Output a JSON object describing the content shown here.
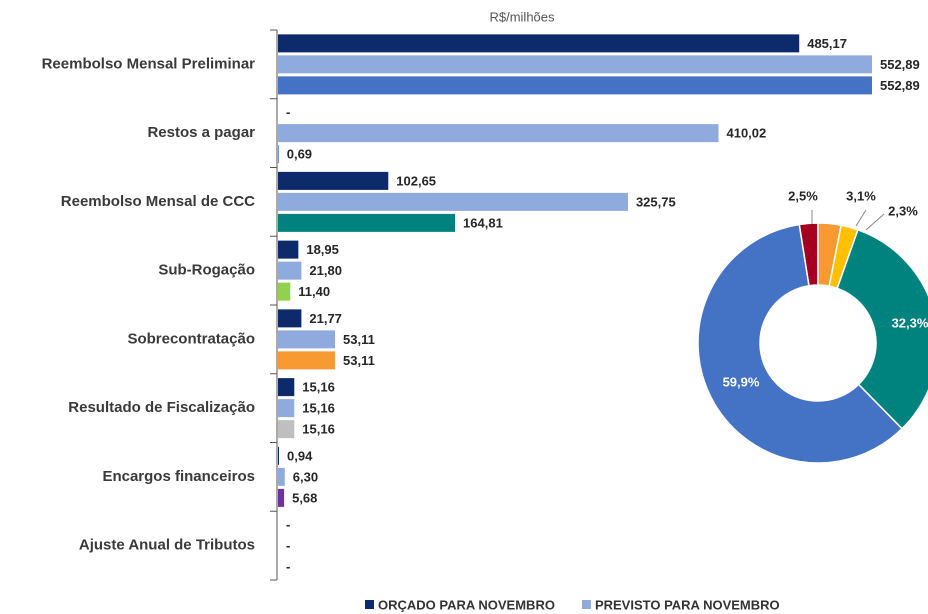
{
  "chart_data": [
    {
      "type": "hbar",
      "axis_label": "R$/milhões",
      "categories": [
        "Reembolso Mensal Preliminar",
        "Restos a pagar",
        "Reembolso Mensal de CCC",
        "Sub-Rogação",
        "Sobrecontratação",
        "Resultado de Fiscalização",
        "Encargos financeiros",
        "Ajuste Anual de Tributos"
      ],
      "xlim": [
        0,
        600
      ],
      "series": [
        {
          "name": "ORÇADO PARA NOVEMBRO",
          "color": "#0d2a6b",
          "values": [
            485.17,
            null,
            102.65,
            18.95,
            21.77,
            15.16,
            0.94,
            null
          ],
          "value_labels": [
            "485,17",
            "-",
            "102,65",
            "18,95",
            "21,77",
            "15,16",
            "0,94",
            "-"
          ]
        },
        {
          "name": "PREVISTO PARA NOVEMBRO",
          "color": "#8faadc",
          "values": [
            552.89,
            410.02,
            325.75,
            21.8,
            53.11,
            15.16,
            6.3,
            null
          ],
          "value_labels": [
            "552,89",
            "410,02",
            "325,75",
            "21,80",
            "53,11",
            "15,16",
            "6,30",
            "-"
          ]
        },
        {
          "colors": [
            "#4472c4",
            "#4472c4",
            "#00827f",
            "#92d050",
            "#f79a32",
            "#bfbfbf",
            "#7030a0",
            "#4472c4"
          ],
          "values": [
            552.89,
            0.69,
            164.81,
            11.4,
            53.11,
            15.16,
            5.68,
            null
          ],
          "value_labels": [
            "552,89",
            "0,69",
            "164,81",
            "11,40",
            "53,11",
            "15,16",
            "5,68",
            "-"
          ]
        }
      ]
    },
    {
      "type": "donut",
      "values": [
        2.5,
        3.1,
        2.3,
        32.3,
        59.9
      ],
      "value_labels": [
        "2,5%",
        "3,1%",
        "2,3%",
        "32,3%",
        "59,9%"
      ],
      "colors": [
        "#a50021",
        "#f79a32",
        "#ffc000",
        "#00827f",
        "#4472c4"
      ]
    }
  ]
}
